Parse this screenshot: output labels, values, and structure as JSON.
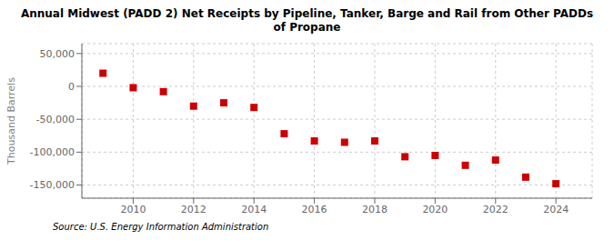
{
  "chart_data": {
    "type": "scatter",
    "title": "Annual Midwest (PADD 2) Net Receipts by Pipeline, Tanker, Barge and Rail from Other PADDs\nof Propane",
    "ylabel": "Thousand Barrels",
    "annotations": [
      "Source: U.S. Energy Information Administration"
    ],
    "x": [
      2009,
      2010,
      2011,
      2012,
      2013,
      2014,
      2015,
      2016,
      2017,
      2018,
      2019,
      2020,
      2021,
      2022,
      2023,
      2024
    ],
    "values": [
      20000,
      -2000,
      -8000,
      -30000,
      -25000,
      -32000,
      -72000,
      -83000,
      -85000,
      -83000,
      -107000,
      -105000,
      -120000,
      -112000,
      -138000,
      -148000
    ],
    "color": "#cc0000",
    "marker": "square",
    "xlim": [
      2008.3,
      2025.2
    ],
    "xticks": [
      2010,
      2012,
      2014,
      2016,
      2018,
      2020,
      2022,
      2024
    ],
    "ylim": [
      -170000,
      65000
    ],
    "yticks": [
      {
        "value": -150000,
        "label": "-150,000"
      },
      {
        "value": -100000,
        "label": "-100,000"
      },
      {
        "value": -50000,
        "label": "-50,000"
      },
      0,
      {
        "value": 50000,
        "label": "50,000"
      }
    ],
    "grid": true
  }
}
